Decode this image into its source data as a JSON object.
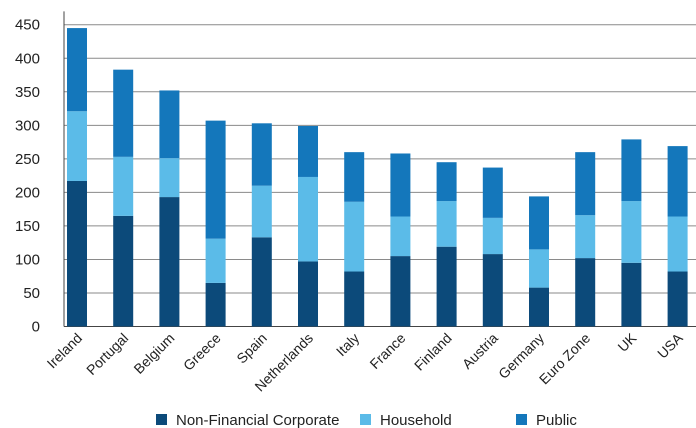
{
  "chart_data": {
    "type": "bar",
    "stacked": true,
    "categories": [
      "Ireland",
      "Portugal",
      "Belgium",
      "Greece",
      "Spain",
      "Netherlands",
      "Italy",
      "France",
      "Finland",
      "Austria",
      "Germany",
      "Euro Zone",
      "UK",
      "USA"
    ],
    "series": [
      {
        "name": "Non-Financial Corporate",
        "color": "#0c4a7a",
        "values": [
          217,
          165,
          193,
          65,
          133,
          97,
          82,
          105,
          119,
          108,
          58,
          102,
          95,
          82
        ]
      },
      {
        "name": "Household",
        "color": "#5bbbe8",
        "values": [
          104,
          88,
          58,
          66,
          77,
          126,
          104,
          59,
          68,
          54,
          57,
          64,
          92,
          82
        ]
      },
      {
        "name": "Public",
        "color": "#1477bb",
        "values": [
          124,
          130,
          101,
          176,
          93,
          76,
          74,
          94,
          58,
          75,
          79,
          94,
          92,
          105
        ]
      }
    ],
    "yticks": [
      0,
      50,
      100,
      150,
      200,
      250,
      300,
      350,
      400,
      450
    ],
    "ylim": [
      0,
      470
    ],
    "grid": true,
    "legend": "bottom"
  }
}
